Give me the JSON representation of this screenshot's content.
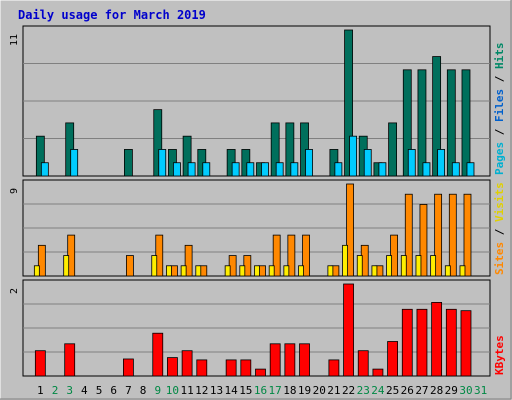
{
  "title": "Daily usage for March 2019",
  "colors": {
    "background": "#c0c0c0",
    "plot_bg": "#c0c0c0",
    "grid": "#808080",
    "title": "#0000cc",
    "pages": "#006f5c",
    "files": "#00ccff",
    "hits": "#008866",
    "visits": "#ff8800",
    "sites": "#ffee00",
    "kbytes": "#ff0000",
    "weekend_day": "#008844",
    "weekday": "#000000"
  },
  "legend": {
    "top": {
      "pages": "Pages",
      "files": "Files",
      "hits": "Hits",
      "sep": " / "
    },
    "mid": {
      "sites": "Sites",
      "visits": "Visits",
      "sep": " / "
    },
    "bot": {
      "kbytes": "KBytes"
    }
  },
  "chart_data": [
    {
      "type": "bar",
      "panel": "hits-files-pages",
      "ymax_label": "11",
      "ylim": [
        0,
        11
      ],
      "grid": true,
      "categories": [
        "1",
        "2",
        "3",
        "4",
        "5",
        "6",
        "7",
        "8",
        "9",
        "10",
        "11",
        "12",
        "13",
        "14",
        "15",
        "16",
        "17",
        "18",
        "19",
        "20",
        "21",
        "22",
        "23",
        "24",
        "25",
        "26",
        "27",
        "28",
        "29",
        "30",
        "31"
      ],
      "series": [
        {
          "name": "Hits",
          "values": [
            3,
            0,
            4,
            0,
            0,
            0,
            2,
            0,
            5,
            2,
            3,
            2,
            0,
            2,
            2,
            1,
            4,
            4,
            4,
            0,
            2,
            11,
            3,
            1,
            4,
            8,
            8,
            9,
            8,
            8,
            0
          ]
        },
        {
          "name": "Files",
          "values": [
            1,
            0,
            2,
            0,
            0,
            0,
            0,
            0,
            2,
            1,
            1,
            1,
            0,
            1,
            1,
            1,
            1,
            1,
            2,
            0,
            1,
            3,
            2,
            1,
            0,
            2,
            1,
            2,
            1,
            1,
            0
          ]
        }
      ]
    },
    {
      "type": "bar",
      "panel": "visits-sites",
      "ymax_label": "9",
      "ylim": [
        0,
        9
      ],
      "grid": true,
      "categories": [
        "1",
        "2",
        "3",
        "4",
        "5",
        "6",
        "7",
        "8",
        "9",
        "10",
        "11",
        "12",
        "13",
        "14",
        "15",
        "16",
        "17",
        "18",
        "19",
        "20",
        "21",
        "22",
        "23",
        "24",
        "25",
        "26",
        "27",
        "28",
        "29",
        "30",
        "31"
      ],
      "series": [
        {
          "name": "Visits",
          "values": [
            3,
            0,
            4,
            0,
            0,
            0,
            2,
            0,
            4,
            1,
            3,
            1,
            0,
            2,
            2,
            1,
            4,
            4,
            4,
            0,
            1,
            9,
            3,
            1,
            4,
            8,
            7,
            8,
            8,
            8,
            0
          ]
        },
        {
          "name": "Sites",
          "values": [
            1,
            0,
            2,
            0,
            0,
            0,
            0,
            0,
            2,
            1,
            1,
            1,
            0,
            1,
            1,
            1,
            1,
            1,
            1,
            0,
            1,
            3,
            2,
            1,
            2,
            2,
            2,
            2,
            1,
            1,
            0
          ]
        }
      ]
    },
    {
      "type": "bar",
      "panel": "kbytes",
      "ymax_label": "2",
      "ylim": [
        0,
        2
      ],
      "grid": true,
      "categories": [
        "1",
        "2",
        "3",
        "4",
        "5",
        "6",
        "7",
        "8",
        "9",
        "10",
        "11",
        "12",
        "13",
        "14",
        "15",
        "16",
        "17",
        "18",
        "19",
        "20",
        "21",
        "22",
        "23",
        "24",
        "25",
        "26",
        "27",
        "28",
        "29",
        "30",
        "31"
      ],
      "series": [
        {
          "name": "KBytes",
          "values": [
            0.55,
            0,
            0.7,
            0,
            0,
            0,
            0.37,
            0,
            0.93,
            0.4,
            0.55,
            0.35,
            0,
            0.35,
            0.35,
            0.15,
            0.7,
            0.7,
            0.7,
            0,
            0.35,
            2.0,
            0.55,
            0.15,
            0.75,
            1.45,
            1.45,
            1.6,
            1.45,
            1.42,
            0
          ]
        }
      ]
    }
  ],
  "x_labels": [
    "1",
    "2",
    "3",
    "4",
    "5",
    "6",
    "7",
    "8",
    "9",
    "10",
    "11",
    "12",
    "13",
    "14",
    "15",
    "16",
    "17",
    "18",
    "19",
    "20",
    "21",
    "22",
    "23",
    "24",
    "25",
    "26",
    "27",
    "28",
    "29",
    "30",
    "31"
  ],
  "weekend_days": [
    2,
    3,
    9,
    10,
    16,
    17,
    23,
    24,
    30,
    31
  ]
}
